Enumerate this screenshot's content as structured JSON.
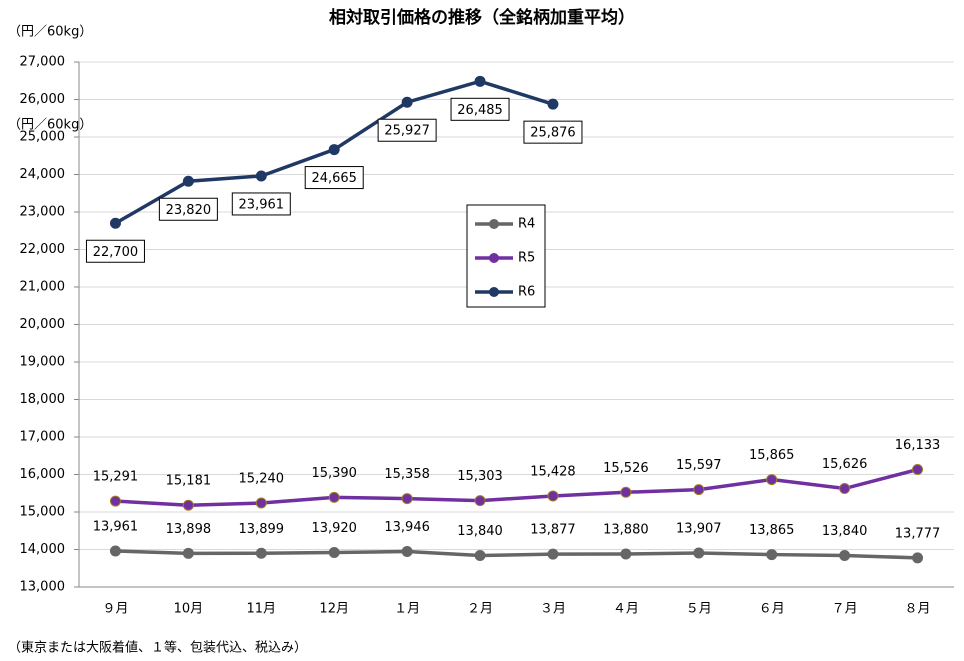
{
  "chart_data": {
    "type": "line",
    "title": "相対取引価格の推移（全銘柄加重平均）",
    "y_label": "（円／60kg）",
    "annotations": [
      "（円／60kg）"
    ],
    "footnote": "（東京または大阪着値、１等、包装代込、税込み）",
    "categories": [
      "９月",
      "10月",
      "11月",
      "12月",
      "１月",
      "２月",
      "３月",
      "４月",
      "５月",
      "６月",
      "７月",
      "８月"
    ],
    "series": [
      {
        "name": "R4",
        "color": "#666666",
        "values": [
          13961,
          13898,
          13899,
          13920,
          13946,
          13840,
          13877,
          13880,
          13907,
          13865,
          13840,
          13777
        ],
        "value_labels": [
          "13,961",
          "13,898",
          "13,899",
          "13,920",
          "13,946",
          "13,840",
          "13,877",
          "13,880",
          "13,907",
          "13,865",
          "13,840",
          "13,777"
        ]
      },
      {
        "name": "R5",
        "color": "#7030a0",
        "values": [
          15291,
          15181,
          15240,
          15390,
          15358,
          15303,
          15428,
          15526,
          15597,
          15865,
          15626,
          16133
        ],
        "value_labels": [
          "15,291",
          "15,181",
          "15,240",
          "15,390",
          "15,358",
          "15,303",
          "15,428",
          "15,526",
          "15,597",
          "15,865",
          "15,626",
          "16,133"
        ]
      },
      {
        "name": "R6",
        "color": "#203864",
        "values": [
          22700,
          23820,
          23961,
          24665,
          25927,
          26485,
          25876,
          null,
          null,
          null,
          null,
          null
        ],
        "value_labels": [
          "22,700",
          "23,820",
          "23,961",
          "24,665",
          "25,927",
          "26,485",
          "25,876",
          null,
          null,
          null,
          null,
          null
        ]
      }
    ],
    "ylim": [
      13000,
      27000
    ],
    "yticks": [
      {
        "value": 13000,
        "label": "13,000"
      },
      {
        "value": 14000,
        "label": "14,000"
      },
      {
        "value": 15000,
        "label": "15,000"
      },
      {
        "value": 16000,
        "label": "16,000"
      },
      {
        "value": 17000,
        "label": "17,000"
      },
      {
        "value": 18000,
        "label": "18,000"
      },
      {
        "value": 19000,
        "label": "19,000"
      },
      {
        "value": 20000,
        "label": "20,000"
      },
      {
        "value": 21000,
        "label": "21,000"
      },
      {
        "value": 22000,
        "label": "22,000"
      },
      {
        "value": 23000,
        "label": "23,000"
      },
      {
        "value": 24000,
        "label": "24,000"
      },
      {
        "value": 25000,
        "label": "25,000"
      },
      {
        "value": 26000,
        "label": "26,000"
      },
      {
        "value": 27000,
        "label": "27,000"
      }
    ],
    "grid": true,
    "legend": "center"
  }
}
